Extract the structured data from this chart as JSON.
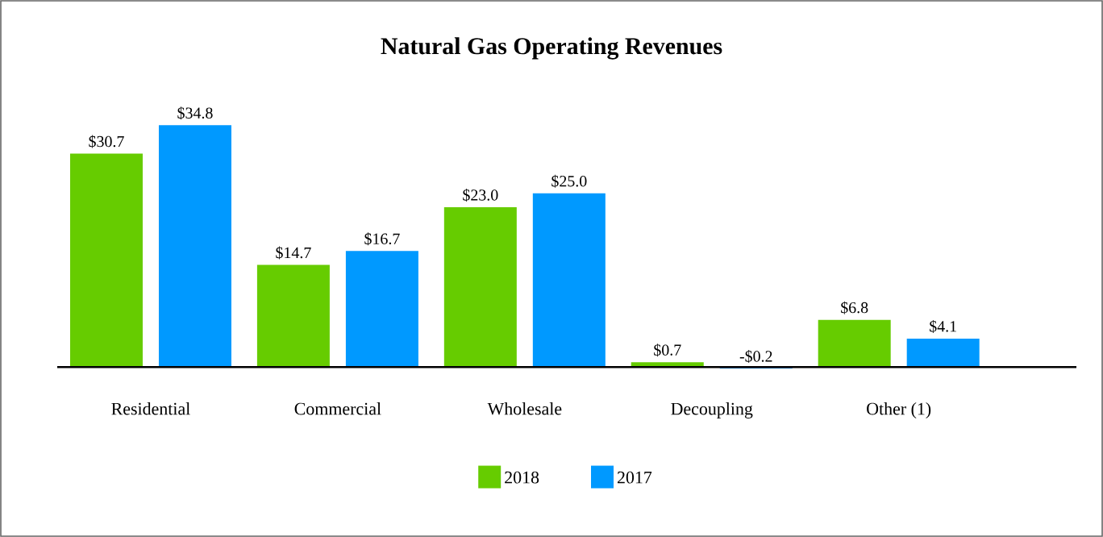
{
  "chart_data": {
    "type": "bar",
    "title": "Natural Gas Operating Revenues",
    "categories": [
      "Residential",
      "Commercial",
      "Wholesale",
      "Decoupling",
      "Other (1)"
    ],
    "series": [
      {
        "name": "2018",
        "color": "#66cc00",
        "values": [
          30.7,
          14.7,
          23.0,
          0.7,
          6.8
        ],
        "value_labels": [
          "$30.7",
          "$14.7",
          "$23.0",
          "$0.7",
          "$6.8"
        ]
      },
      {
        "name": "2017",
        "color": "#0099ff",
        "values": [
          34.8,
          16.7,
          25.0,
          -0.2,
          4.1
        ],
        "value_labels": [
          "$34.8",
          "$16.7",
          "$25.0",
          "-$0.2",
          "$4.1"
        ]
      }
    ],
    "legend": "bottom"
  }
}
